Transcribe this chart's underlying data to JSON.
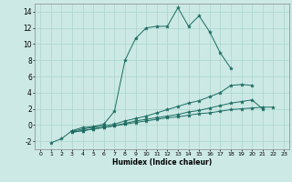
{
  "xlabel": "Humidex (Indice chaleur)",
  "background_color": "#cce9e5",
  "grid_color": "#aad4ce",
  "line_color": "#1a6b60",
  "xlim": [
    -0.5,
    23.5
  ],
  "ylim": [
    -3,
    15
  ],
  "xticks": [
    0,
    1,
    2,
    3,
    4,
    5,
    6,
    7,
    8,
    9,
    10,
    11,
    12,
    13,
    14,
    15,
    16,
    17,
    18,
    19,
    20,
    21,
    22,
    23
  ],
  "yticks": [
    -2,
    0,
    2,
    4,
    6,
    8,
    10,
    12,
    14
  ],
  "series": [
    [
      null,
      -2.2,
      -1.7,
      -0.7,
      -0.3,
      -0.2,
      0.1,
      1.7,
      8.0,
      10.7,
      12.0,
      12.2,
      12.2,
      14.5,
      12.2,
      13.5,
      11.5,
      8.9,
      7.0,
      null,
      null,
      null,
      null,
      null
    ],
    [
      null,
      null,
      null,
      -0.8,
      -0.5,
      -0.3,
      -0.1,
      0.1,
      0.5,
      0.8,
      1.1,
      1.5,
      1.9,
      2.3,
      2.7,
      3.0,
      3.5,
      4.0,
      4.9,
      5.0,
      4.9,
      null,
      null,
      null
    ],
    [
      null,
      null,
      null,
      -0.9,
      -0.7,
      -0.5,
      -0.3,
      -0.1,
      0.2,
      0.5,
      0.7,
      0.9,
      1.1,
      1.3,
      1.6,
      1.8,
      2.1,
      2.4,
      2.7,
      2.9,
      3.1,
      2.0,
      null,
      null
    ],
    [
      null,
      null,
      null,
      -0.9,
      -0.7,
      -0.5,
      -0.3,
      -0.1,
      0.1,
      0.3,
      0.5,
      0.7,
      0.9,
      1.0,
      1.2,
      1.4,
      1.5,
      1.7,
      1.9,
      2.0,
      2.1,
      2.2,
      2.2,
      null
    ]
  ]
}
